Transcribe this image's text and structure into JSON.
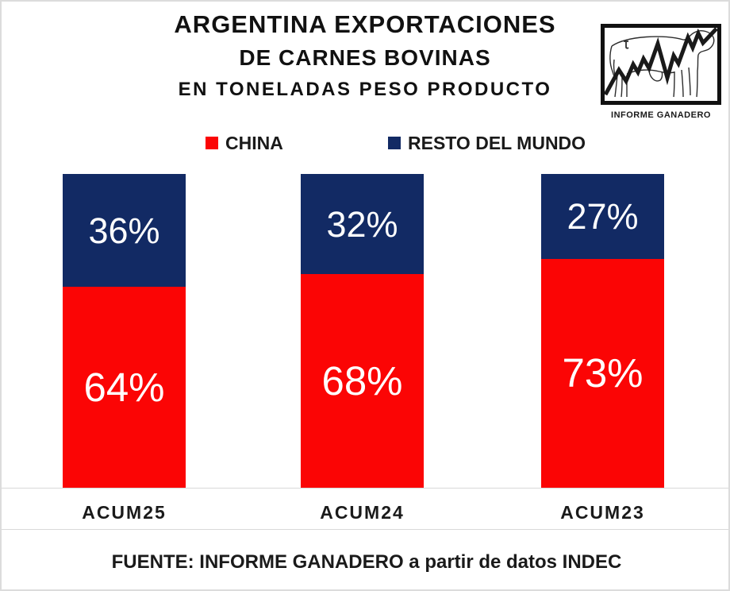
{
  "header": {
    "title_lines": {
      "line1": "ARGENTINA EXPORTACIONES",
      "line2": "DE CARNES BOVINAS",
      "line3": "EN TONELADAS PESO PRODUCTO"
    },
    "logo": {
      "caption": "INFORME GANADERO"
    }
  },
  "legend": {
    "items": [
      {
        "label": "CHINA",
        "color": "#fb0505"
      },
      {
        "label": "RESTO DEL MUNDO",
        "color": "#122a64"
      }
    ]
  },
  "chart_data": {
    "type": "bar",
    "stacked": true,
    "orientation": "vertical",
    "unit": "%",
    "categories": [
      "ACUM25",
      "ACUM24",
      "ACUM23"
    ],
    "series": [
      {
        "name": "CHINA",
        "color": "#fb0505",
        "values": [
          64,
          68,
          73
        ]
      },
      {
        "name": "RESTO DEL MUNDO",
        "color": "#122a64",
        "values": [
          36,
          32,
          27
        ]
      }
    ],
    "title": "ARGENTINA EXPORTACIONES DE CARNES BOVINAS EN TONELADAS PESO PRODUCTO",
    "xlabel": "",
    "ylabel": "",
    "ylim": [
      0,
      100
    ],
    "grid": false,
    "value_labels": "inside-white",
    "legend_position": "top"
  },
  "footer": {
    "source_text": "FUENTE: INFORME GANADERO a partir de datos INDEC"
  }
}
